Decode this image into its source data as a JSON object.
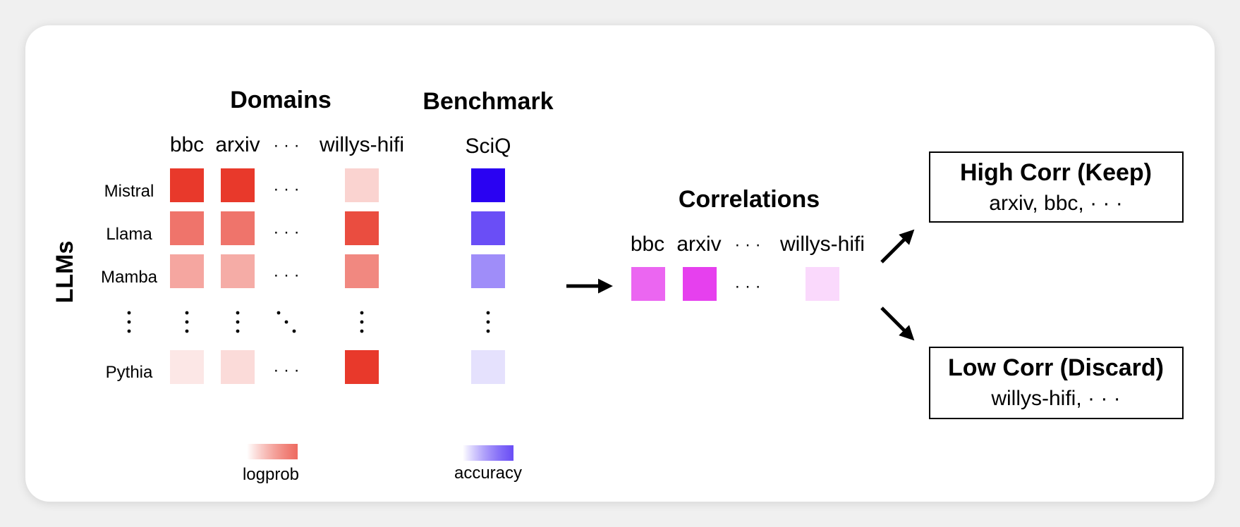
{
  "headers": {
    "domains": "Domains",
    "benchmark": "Benchmark",
    "correlations": "Correlations"
  },
  "axis_label": "LLMs",
  "domain_columns": [
    "bbc",
    "arxiv",
    "willys-hifi"
  ],
  "benchmark_column": "SciQ",
  "models": [
    "Mistral",
    "Llama",
    "Mamba",
    "Pythia"
  ],
  "ellipsis": "· · ·",
  "legend": {
    "logprob": "logprob",
    "accuracy": "accuracy"
  },
  "colors": {
    "logprob_red": "#e8392b",
    "accuracy_blue": "#2a02f2",
    "correlation_magenta": "#e640ee",
    "arrow": "#000000"
  },
  "grid": {
    "logprob_intensity": [
      [
        1.0,
        1.0,
        0.22
      ],
      [
        0.7,
        0.7,
        0.9
      ],
      [
        0.45,
        0.42,
        0.6
      ],
      [
        0.12,
        0.18,
        1.0
      ]
    ],
    "accuracy_intensity": [
      1.0,
      0.7,
      0.45,
      0.12
    ]
  },
  "correlation_intensity": [
    0.8,
    1.0,
    0.2
  ],
  "outcomes": {
    "high": {
      "title": "High Corr (Keep)",
      "items": "arxiv, bbc, · · ·"
    },
    "low": {
      "title": "Low Corr (Discard)",
      "items": "willys-hifi, · · ·"
    }
  }
}
